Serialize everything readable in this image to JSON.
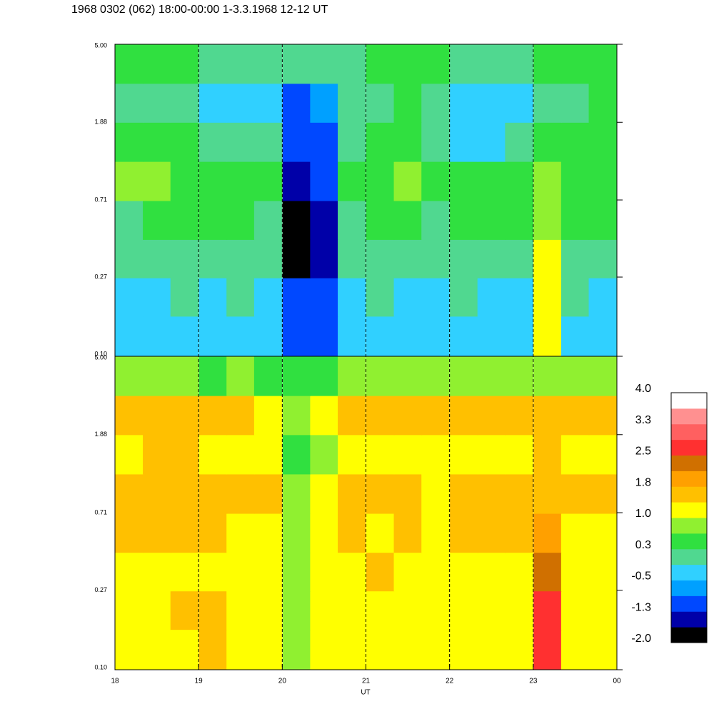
{
  "chart_data": {
    "type": "heatmap",
    "title": "1968 0302 (062) 18:00-00:00 1-3.3.1968  12-12 UT",
    "x_label": "UT",
    "xlim": [
      18,
      24
    ],
    "xticks": [
      18,
      19,
      20,
      21,
      22,
      23,
      {
        "value": 24,
        "label": "00"
      }
    ],
    "grid": "dashed",
    "log_scale": true,
    "x": [
      18.17,
      18.5,
      18.83,
      19.17,
      19.5,
      19.83,
      20.17,
      20.5,
      20.83,
      21.17,
      21.5,
      21.83,
      22.17,
      22.5,
      22.83,
      23.17,
      23.5,
      23.83
    ],
    "y": [
      0.13,
      0.21,
      0.34,
      0.55,
      0.9,
      1.47,
      2.4,
      3.9
    ],
    "ylim": [
      0.1,
      5
    ],
    "yticks": [
      {
        "value": 0.1,
        "label": "0.10"
      },
      {
        "value": 0.27,
        "label": "0.27"
      },
      {
        "value": 0.71,
        "label": "0.71"
      },
      {
        "value": 1.88,
        "label": "1.88"
      },
      {
        "value": 5,
        "label": "5.00"
      }
    ],
    "panels": [
      {
        "z": [
          [
            -0.4,
            -0.5,
            -0.5,
            -0.4,
            -0.5,
            -0.5,
            -1.2,
            -1.0,
            -0.5,
            -0.4,
            -0.4,
            -0.5,
            -0.4,
            -0.5,
            -0.5,
            1.3,
            -0.5,
            -0.5
          ],
          [
            -0.2,
            -0.2,
            -0.1,
            -0.2,
            -0.1,
            -0.2,
            -1.1,
            -1.0,
            -0.2,
            -0.1,
            -0.2,
            -0.2,
            -0.1,
            -0.2,
            -0.2,
            1.2,
            -0.1,
            -0.2
          ],
          [
            0.0,
            0.1,
            0.0,
            0.1,
            0.0,
            0.0,
            -1.7,
            -1.5,
            -0.1,
            0.1,
            0.0,
            0.0,
            0.1,
            0.0,
            0.0,
            1.0,
            0.1,
            0.0
          ],
          [
            0.2,
            0.4,
            0.3,
            0.4,
            0.3,
            0.2,
            -1.8,
            -1.6,
            0.1,
            0.4,
            0.3,
            0.2,
            0.4,
            0.3,
            0.3,
            0.9,
            0.4,
            0.3
          ],
          [
            0.7,
            0.8,
            0.6,
            0.5,
            0.6,
            0.5,
            -1.5,
            -1.2,
            0.4,
            0.6,
            0.7,
            0.6,
            0.5,
            0.6,
            0.5,
            0.8,
            0.6,
            0.6
          ],
          [
            0.5,
            0.3,
            0.3,
            0.2,
            0.1,
            0.1,
            -1.2,
            -0.9,
            0.1,
            0.4,
            0.5,
            0.2,
            -0.3,
            -0.2,
            0.1,
            0.4,
            0.3,
            0.4
          ],
          [
            0.2,
            0.1,
            -0.1,
            -0.2,
            -0.3,
            -0.2,
            -0.9,
            -0.7,
            -0.1,
            0.2,
            0.3,
            0.0,
            -0.5,
            -0.5,
            -0.2,
            0.1,
            0.2,
            0.3
          ],
          [
            0.4,
            0.3,
            0.3,
            0.2,
            0.2,
            0.2,
            0.0,
            0.1,
            0.2,
            0.4,
            0.4,
            0.3,
            0.2,
            0.2,
            0.2,
            0.3,
            0.4,
            0.5
          ]
        ]
      },
      {
        "z": [
          [
            1.1,
            1.0,
            1.3,
            1.4,
            1.1,
            1.0,
            0.9,
            1.2,
            1.1,
            1.1,
            1.0,
            1.1,
            1.1,
            1.2,
            1.1,
            2.7,
            1.0,
            1.1
          ],
          [
            1.2,
            1.1,
            1.5,
            1.4,
            1.2,
            1.1,
            0.9,
            1.3,
            1.2,
            1.3,
            1.2,
            1.1,
            1.2,
            1.3,
            1.2,
            2.6,
            1.1,
            1.2
          ],
          [
            1.3,
            1.2,
            1.3,
            1.3,
            1.3,
            1.2,
            0.9,
            1.2,
            1.3,
            1.4,
            1.3,
            1.2,
            1.3,
            1.3,
            1.3,
            2.2,
            1.2,
            1.2
          ],
          [
            1.4,
            1.4,
            1.4,
            1.4,
            1.3,
            1.3,
            0.9,
            1.2,
            1.4,
            1.3,
            1.4,
            1.3,
            1.4,
            1.4,
            1.4,
            1.8,
            1.3,
            1.3
          ],
          [
            1.6,
            1.6,
            1.7,
            1.7,
            1.5,
            1.4,
            0.8,
            1.2,
            1.7,
            1.5,
            1.4,
            1.3,
            1.6,
            1.6,
            1.5,
            1.6,
            1.5,
            1.4
          ],
          [
            1.3,
            1.4,
            1.4,
            1.3,
            1.3,
            1.2,
            0.6,
            0.9,
            1.3,
            1.3,
            1.2,
            1.2,
            1.3,
            1.3,
            1.3,
            1.4,
            1.3,
            1.2
          ],
          [
            1.6,
            1.5,
            1.6,
            1.5,
            1.5,
            1.3,
            0.8,
            1.1,
            1.4,
            1.6,
            1.5,
            1.4,
            1.5,
            1.5,
            1.5,
            1.7,
            1.6,
            1.5
          ],
          [
            0.8,
            0.7,
            0.7,
            0.6,
            0.7,
            0.6,
            0.5,
            0.6,
            0.7,
            0.8,
            0.8,
            0.7,
            0.7,
            0.8,
            0.7,
            0.8,
            0.8,
            0.8
          ]
        ]
      }
    ],
    "clim": [
      -2,
      4
    ],
    "colors": [
      "#000000",
      "#0000a8",
      "#0048ff",
      "#00a0ff",
      "#30d0ff",
      "#50d890",
      "#30e040",
      "#90f030",
      "#ffff00",
      "#ffc000",
      "#ffa000",
      "#d07000",
      "#ff3030",
      "#ff6060",
      "#ff9090",
      "#ffffff"
    ],
    "cticks": [
      {
        "value": 4,
        "label": "4.0"
      },
      {
        "value": 3.25,
        "label": "3.3"
      },
      {
        "value": 2.5,
        "label": "2.5"
      },
      {
        "value": 1.75,
        "label": "1.8"
      },
      {
        "value": 1,
        "label": "1.0"
      },
      {
        "value": 0.25,
        "label": "0.3"
      },
      {
        "value": -0.5,
        "label": "-0.5"
      },
      {
        "value": -1.25,
        "label": "-1.3"
      },
      {
        "value": -2,
        "label": "-2.0"
      }
    ]
  }
}
